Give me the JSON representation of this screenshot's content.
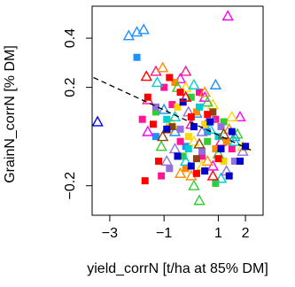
{
  "chart_data": {
    "type": "scatter",
    "title": "",
    "xlabel": "yield_corrN [t/ha at 85% DM]",
    "ylabel": "GrainN_corrN [% DM]",
    "xlim": [
      -3.65,
      2.65
    ],
    "ylim": [
      -0.32,
      0.53
    ],
    "x_ticks": [
      -3,
      -1,
      1,
      2
    ],
    "x_tick_labels": [
      "−3",
      "−1",
      "1",
      "2"
    ],
    "y_ticks": [
      -0.2,
      0.2,
      0.4
    ],
    "y_tick_labels": [
      "−0.2",
      "0.2",
      "0.4"
    ],
    "legend": "none",
    "grid": false,
    "trend_line": {
      "style": "dashed",
      "x": [
        -3.6,
        2.2
      ],
      "y": [
        0.24,
        -0.055
      ]
    },
    "series": [
      {
        "marker": "triangle-open",
        "color": "#0000FF",
        "points": [
          [
            -3.45,
            0.06
          ]
        ]
      },
      {
        "marker": "triangle-open",
        "color": "#1E90FF",
        "points": [
          [
            -2.3,
            0.41
          ],
          [
            -2.0,
            0.425
          ],
          [
            -1.75,
            0.435
          ],
          [
            -1.0,
            0.11
          ],
          [
            -0.6,
            0.02
          ],
          [
            0.2,
            0.095
          ],
          [
            0.9,
            0.21
          ],
          [
            1.6,
            0.0
          ]
        ]
      },
      {
        "marker": "square",
        "color": "#1E90FF",
        "points": [
          [
            -2.0,
            0.322
          ],
          [
            -1.3,
            0.0
          ],
          [
            -0.2,
            -0.04
          ],
          [
            0.6,
            0.02
          ]
        ]
      },
      {
        "marker": "triangle-open",
        "color": "#FF00FF",
        "points": [
          [
            1.35,
            0.49
          ],
          [
            -0.4,
            0.235
          ],
          [
            0.5,
            0.16
          ],
          [
            1.8,
            0.08
          ],
          [
            -1.6,
            0.02
          ],
          [
            0.8,
            -0.12
          ]
        ]
      },
      {
        "marker": "triangle-open",
        "color": "#FF1493",
        "points": [
          [
            -1.3,
            0.265
          ],
          [
            -0.2,
            0.265
          ],
          [
            -1.6,
            0.15
          ],
          [
            0.0,
            0.05
          ],
          [
            1.1,
            -0.02
          ]
        ]
      },
      {
        "marker": "square",
        "color": "#FF1493",
        "points": [
          [
            -1.8,
            0.07
          ],
          [
            -1.0,
            0.2
          ],
          [
            -0.7,
            0.13
          ],
          [
            0.3,
            0.18
          ],
          [
            -0.4,
            -0.02
          ],
          [
            0.9,
            0.07
          ],
          [
            1.5,
            -0.05
          ],
          [
            -1.1,
            -0.16
          ],
          [
            0.4,
            -0.08
          ]
        ]
      },
      {
        "marker": "triangle-open",
        "color": "#FF8C00",
        "points": [
          [
            -1.05,
            0.28
          ],
          [
            0.5,
            0.18
          ],
          [
            -0.4,
            -0.15
          ],
          [
            0.0,
            -0.16
          ],
          [
            0.6,
            -0.1
          ],
          [
            1.4,
            0.03
          ],
          [
            -0.9,
            0.03
          ]
        ]
      },
      {
        "marker": "square",
        "color": "#FF8C00",
        "points": [
          [
            -0.6,
            0.22
          ],
          [
            0.2,
            0.1
          ],
          [
            0.9,
            -0.05
          ],
          [
            -0.2,
            -0.13
          ],
          [
            1.3,
            -0.02
          ]
        ]
      },
      {
        "marker": "triangle-open",
        "color": "#FFD700",
        "points": [
          [
            -0.2,
            0.2
          ],
          [
            0.8,
            0.13
          ],
          [
            1.5,
            0.08
          ],
          [
            -0.7,
            0.05
          ],
          [
            0.4,
            -0.12
          ],
          [
            1.9,
            -0.04
          ],
          [
            0.1,
            -0.02
          ]
        ]
      },
      {
        "marker": "square",
        "color": "#FFD700",
        "points": [
          [
            -0.5,
            0.12
          ],
          [
            0.5,
            0.05
          ],
          [
            1.2,
            -0.1
          ],
          [
            -0.1,
            0.0
          ]
        ]
      },
      {
        "marker": "triangle-open",
        "color": "#32CD32",
        "points": [
          [
            0.3,
            -0.26
          ],
          [
            -0.5,
            0.2
          ],
          [
            0.6,
            0.14
          ],
          [
            1.0,
            -0.07
          ],
          [
            -1.1,
            -0.04
          ],
          [
            1.7,
            0.01
          ],
          [
            0.1,
            -0.2
          ]
        ]
      },
      {
        "marker": "square",
        "color": "#32CD32",
        "points": [
          [
            -1.3,
            0.1
          ],
          [
            0.0,
            0.16
          ],
          [
            0.6,
            -0.02
          ],
          [
            1.2,
            0.06
          ],
          [
            -0.3,
            -0.08
          ],
          [
            0.9,
            -0.19
          ]
        ]
      },
      {
        "marker": "triangle-open",
        "color": "#00CED1",
        "points": [
          [
            -1.25,
            0.22
          ],
          [
            0.1,
            0.21
          ],
          [
            -0.6,
            0.08
          ],
          [
            0.7,
            0.03
          ],
          [
            1.6,
            -0.02
          ],
          [
            -0.2,
            -0.1
          ],
          [
            1.1,
            -0.17
          ]
        ]
      },
      {
        "marker": "square",
        "color": "#00CED1",
        "points": [
          [
            -0.9,
            0.07
          ],
          [
            0.3,
            0.12
          ],
          [
            1.0,
            0.0
          ],
          [
            -0.1,
            -0.05
          ]
        ]
      },
      {
        "marker": "triangle-open",
        "color": "#9370DB",
        "points": [
          [
            -0.9,
            -0.1
          ],
          [
            -0.1,
            0.1
          ],
          [
            0.7,
            0.08
          ],
          [
            1.3,
            -0.14
          ],
          [
            -0.6,
            -0.05
          ],
          [
            0.4,
            0.02
          ],
          [
            1.9,
            -0.06
          ]
        ]
      },
      {
        "marker": "square",
        "color": "#9370DB",
        "points": [
          [
            -1.3,
            0.12
          ],
          [
            -0.4,
            0.03
          ],
          [
            0.4,
            -0.06
          ],
          [
            1.1,
            0.04
          ],
          [
            1.6,
            -0.1
          ],
          [
            -0.8,
            -0.13
          ]
        ]
      },
      {
        "marker": "triangle-open",
        "color": "#8B4513",
        "points": [
          [
            -1.05,
            0.0
          ],
          [
            0.3,
            -0.03
          ],
          [
            1.2,
            0.01
          ]
        ]
      },
      {
        "marker": "square",
        "color": "#8B4513",
        "points": [
          [
            -0.7,
            0.04
          ],
          [
            0.2,
            -0.09
          ],
          [
            0.8,
            0.1
          ]
        ]
      },
      {
        "marker": "square",
        "color": "#0000CD",
        "points": [
          [
            -0.5,
            -0.08
          ],
          [
            0.1,
            0.04
          ],
          [
            0.5,
            -0.14
          ],
          [
            1.1,
            -0.05
          ],
          [
            1.5,
            0.02
          ],
          [
            -0.9,
            0.03
          ],
          [
            0.7,
            0.06
          ],
          [
            1.4,
            -0.16
          ],
          [
            0.0,
            -0.12
          ],
          [
            2.0,
            -0.04
          ],
          [
            -0.3,
            0.14
          ],
          [
            1.8,
            -0.1
          ]
        ]
      },
      {
        "marker": "square",
        "color": "#FF0000",
        "points": [
          [
            -1.6,
            0.16
          ],
          [
            -0.4,
            0.18
          ],
          [
            -1.2,
            -0.1
          ],
          [
            0.2,
            -0.15
          ],
          [
            -1.7,
            -0.18
          ],
          [
            0.6,
            0.09
          ],
          [
            -0.8,
            0.24
          ],
          [
            1.0,
            -0.09
          ],
          [
            -1.4,
            0.05
          ],
          [
            0.0,
            0.08
          ]
        ]
      },
      {
        "marker": "triangle-open",
        "color": "#FF0000",
        "points": [
          [
            -1.65,
            0.245
          ],
          [
            0.8,
            -0.16
          ],
          [
            -0.2,
            0.16
          ]
        ]
      }
    ]
  }
}
